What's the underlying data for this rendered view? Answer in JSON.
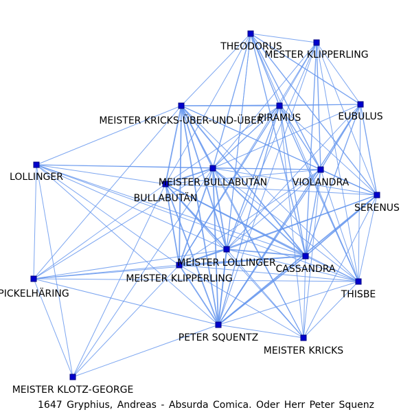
{
  "caption": "1647 Gryphius, Andreas - Absurda Comica. Oder Herr Peter Squenz",
  "colors": {
    "edge": "#6495ED",
    "node_fill": "#0000CD",
    "node_stroke": "#000080",
    "label": "#000000"
  },
  "nodes": [
    {
      "id": "theodorus",
      "label": "THEODORUS"
    },
    {
      "id": "mester_klipperling",
      "label": "MESTER KLIPPERLING"
    },
    {
      "id": "pirmus",
      "label": "PIRAMUS"
    },
    {
      "id": "eubulus",
      "label": "EUBULUS"
    },
    {
      "id": "kricks_ueber",
      "label": "MEISTER KRICKS-ÜBER-UND-ÜBER"
    },
    {
      "id": "lollinger",
      "label": "LOLLINGER"
    },
    {
      "id": "bullabutaen_m",
      "label": "MEISTER BULLABUTÄN"
    },
    {
      "id": "violandra",
      "label": "VIOLANDRA"
    },
    {
      "id": "bullabutaen",
      "label": "BULLABUTÄN"
    },
    {
      "id": "serenus",
      "label": "SERENUS"
    },
    {
      "id": "lollinger_m",
      "label": "MEISTER LOLLINGER"
    },
    {
      "id": "cassandra",
      "label": "CASSANDRA"
    },
    {
      "id": "klipperling_m",
      "label": "MEISTER KLIPPERLING"
    },
    {
      "id": "pickelhaering",
      "label": "PICKELHÄRING"
    },
    {
      "id": "thisbe",
      "label": "THISBE"
    },
    {
      "id": "squentz",
      "label": "PETER SQUENTZ"
    },
    {
      "id": "kricks",
      "label": "MEISTER KRICKS"
    },
    {
      "id": "klotz",
      "label": "MEISTER KLOTZ-GEORGE"
    }
  ]
}
